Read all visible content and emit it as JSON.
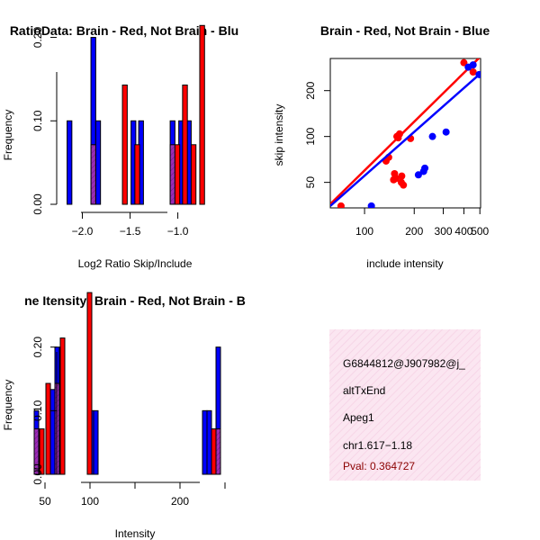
{
  "colors": {
    "red": "#ff0000",
    "blue": "#0000ff",
    "overlap": "#9b2cb6",
    "panel": "#fbe6f1"
  },
  "chart_data": [
    {
      "type": "bar",
      "id": "ratio-hist",
      "title": "RatioData: Brain - Red, Not Brain - Blu",
      "xlabel": "Log2 Ratio Skip/Include",
      "ylabel": "Frequency",
      "xlim": [
        -2.25,
        -0.6
      ],
      "ylim": [
        0,
        0.22
      ],
      "xticks": [
        -2.0,
        -1.5,
        -1.0
      ],
      "xtick_labels": [
        "−2.0",
        "−1.5",
        "−1.0"
      ],
      "yticks": [
        0.0,
        0.1,
        0.2
      ],
      "ytick_labels": [
        "0.00",
        "0.10",
        "0.20"
      ],
      "bin_width": 0.05,
      "series": [
        {
          "name": "Not Brain",
          "color": "blue",
          "bins": [
            {
              "x0": -2.16,
              "v": 0.1
            },
            {
              "x0": -1.91,
              "v": 0.2
            },
            {
              "x0": -1.86,
              "v": 0.1
            },
            {
              "x0": -1.49,
              "v": 0.1
            },
            {
              "x0": -1.41,
              "v": 0.1
            },
            {
              "x0": -1.08,
              "v": 0.1
            },
            {
              "x0": -0.99,
              "v": 0.1
            },
            {
              "x0": -0.91,
              "v": 0.1
            }
          ]
        },
        {
          "name": "Brain",
          "color": "red",
          "bins": [
            {
              "x0": -1.91,
              "v": 0.0714
            },
            {
              "x0": -1.58,
              "v": 0.1429
            },
            {
              "x0": -1.45,
              "v": 0.0714
            },
            {
              "x0": -1.08,
              "v": 0.0714
            },
            {
              "x0": -1.03,
              "v": 0.0714
            },
            {
              "x0": -0.95,
              "v": 0.1429
            },
            {
              "x0": -0.86,
              "v": 0.0714
            },
            {
              "x0": -0.77,
              "v": 0.2143
            }
          ]
        }
      ]
    },
    {
      "type": "scatter",
      "id": "intensity-scatter",
      "title": "Brain - Red, Not Brain - Blue",
      "xlabel": "include intensity",
      "ylabel": "skip intensity",
      "log": "xy",
      "xlim": [
        62,
        505
      ],
      "ylim": [
        34,
        325
      ],
      "xticks": [
        100,
        200,
        300,
        400,
        500
      ],
      "yticks": [
        50,
        100,
        200
      ],
      "series": [
        {
          "name": "Brain",
          "color": "red",
          "points": [
            [
              72,
              35
            ],
            [
              135,
              69
            ],
            [
              140,
              73
            ],
            [
              150,
              52
            ],
            [
              152,
              57
            ],
            [
              155,
              53
            ],
            [
              157,
              100
            ],
            [
              160,
              98
            ],
            [
              163,
              104
            ],
            [
              167,
              50
            ],
            [
              168,
              55
            ],
            [
              172,
              48
            ],
            [
              190,
              97
            ],
            [
              400,
              305
            ],
            [
              455,
              265
            ]
          ],
          "fit": [
            [
              62,
              36
            ],
            [
              505,
              335
            ]
          ]
        },
        {
          "name": "Not Brain",
          "color": "blue",
          "points": [
            [
              110,
              35
            ],
            [
              212,
              56
            ],
            [
              228,
              59
            ],
            [
              232,
              62
            ],
            [
              258,
              100
            ],
            [
              312,
              107
            ],
            [
              425,
              285
            ],
            [
              455,
              295
            ],
            [
              495,
              255
            ]
          ],
          "fit": [
            [
              62,
              35
            ],
            [
              505,
              260
            ]
          ]
        }
      ]
    },
    {
      "type": "bar",
      "id": "gene-intensity-hist",
      "title": "ne Itensity: Brain - Red, Not Brain - B",
      "xlabel": "Intensity",
      "ylabel": "Frequency",
      "xlim": [
        28,
        262
      ],
      "ylim": [
        0,
        0.3
      ],
      "xticks": [
        50,
        100,
        150,
        200,
        250
      ],
      "xtick_labels": [
        "50",
        "100",
        "",
        "200",
        ""
      ],
      "yticks": [
        0.0,
        0.1,
        0.2
      ],
      "ytick_labels": [
        "0.00",
        "0.10",
        "0.20"
      ],
      "bin_width": 5,
      "series": [
        {
          "name": "Not Brain",
          "color": "blue",
          "bins": [
            {
              "x0": 38,
              "v": 0.1
            },
            {
              "x0": 56,
              "v": 0.1333
            },
            {
              "x0": 61,
              "v": 0.2
            },
            {
              "x0": 99,
              "v": 0.1
            },
            {
              "x0": 104,
              "v": 0.1
            },
            {
              "x0": 225,
              "v": 0.1
            },
            {
              "x0": 230,
              "v": 0.1
            },
            {
              "x0": 240,
              "v": 0.2
            }
          ]
        },
        {
          "name": "Brain",
          "color": "red",
          "bins": [
            {
              "x0": 38,
              "v": 0.0714
            },
            {
              "x0": 44,
              "v": 0.0714
            },
            {
              "x0": 51,
              "v": 0.1429
            },
            {
              "x0": 61,
              "v": 0.1429
            },
            {
              "x0": 67,
              "v": 0.2143
            },
            {
              "x0": 97,
              "v": 0.2857
            },
            {
              "x0": 235,
              "v": 0.0714
            },
            {
              "x0": 240,
              "v": 0.0714
            }
          ]
        }
      ]
    }
  ],
  "info": {
    "event_id": "G6844812@J907982@j_",
    "event_type": "altTxEnd",
    "gene": "Apeg1",
    "location": "chr1.617−1.18",
    "pval_text": "Pval: 0.364727"
  }
}
